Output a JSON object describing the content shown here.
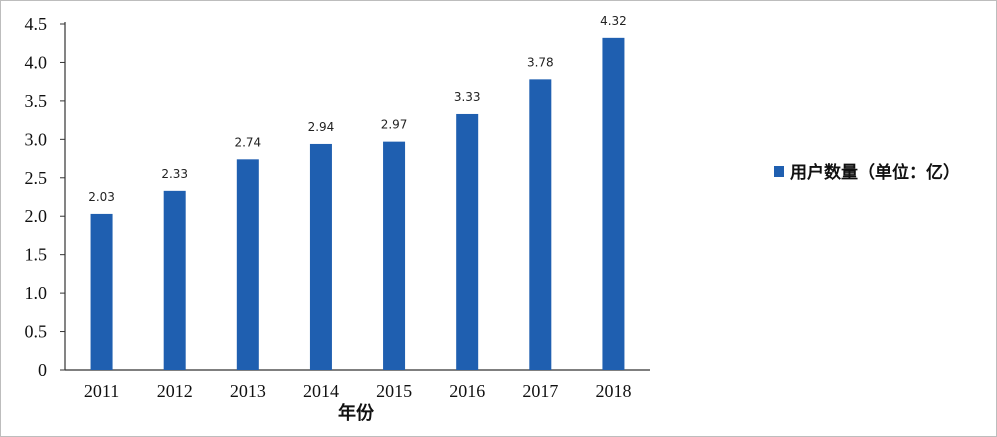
{
  "chart_data": {
    "type": "bar",
    "categories": [
      "2011",
      "2012",
      "2013",
      "2014",
      "2015",
      "2016",
      "2017",
      "2018"
    ],
    "series": [
      {
        "name": "用户数量（单位：亿）",
        "values": [
          2.03,
          2.33,
          2.74,
          2.94,
          2.97,
          3.33,
          3.78,
          4.32
        ]
      }
    ],
    "data_labels": [
      "2.03",
      "2.33",
      "2.74",
      "2.94",
      "2.97",
      "3.33",
      "3.78",
      "4.32"
    ],
    "y_ticks": [
      "0",
      "0.5",
      "1.0",
      "1.5",
      "2.0",
      "2.5",
      "3.0",
      "3.5",
      "4.0",
      "4.5"
    ],
    "xlabel": "年份",
    "ylabel": "",
    "ylim": [
      0,
      4.5
    ],
    "legend_position": "right",
    "grid": false,
    "bar_color": "#1f5fb0"
  }
}
